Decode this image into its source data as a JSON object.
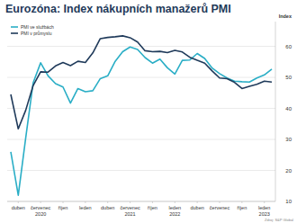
{
  "chart_data": {
    "type": "line",
    "title": "Eurozóna: Index nákupních manažerů PMI",
    "y_label": "Index",
    "source": "Zdroj: S&P Global",
    "categories": [
      null,
      "duben",
      null,
      null,
      "červenec 2020",
      null,
      null,
      "říjen",
      null,
      null,
      "leden",
      null,
      null,
      "duben",
      null,
      null,
      "červenec 2021",
      null,
      null,
      "říjen",
      null,
      null,
      "leden 2022",
      null,
      null,
      "duben",
      null,
      null,
      "červenec",
      null,
      null,
      "říjen",
      null,
      null,
      "leden 2023",
      null
    ],
    "series": [
      {
        "name": "PMI ve službách",
        "color": "#2aaec6",
        "values": [
          26,
          12,
          30.5,
          48.3,
          54.7,
          50.5,
          48,
          46.9,
          41.7,
          46.4,
          45.4,
          45.7,
          49.6,
          50.5,
          55.2,
          58.3,
          59.8,
          59,
          56.4,
          54.6,
          55.9,
          53.1,
          51.1,
          55.5,
          55.6,
          57.7,
          56.1,
          53,
          51.2,
          49.8,
          48.8,
          48.6,
          48.5,
          49.8,
          50.8,
          52.7
        ]
      },
      {
        "name": "PMI v průmyslu",
        "color": "#1f3a5a",
        "values": [
          44.5,
          33.4,
          39.4,
          47.4,
          51.8,
          51.7,
          53.7,
          54.8,
          53.8,
          55.2,
          54.8,
          57.9,
          62.5,
          62.9,
          63.1,
          63.4,
          62.8,
          61.4,
          58.6,
          58.3,
          58.4,
          58,
          58.7,
          58.2,
          56.5,
          55.5,
          54.6,
          52.1,
          49.8,
          49.6,
          48.4,
          46.4,
          47.1,
          47.8,
          48.8,
          48.5
        ]
      }
    ],
    "ylim": [
      10,
      68
    ],
    "yticks": [
      10,
      20,
      30,
      40,
      50,
      60
    ],
    "grid": true,
    "legend": "top-left"
  }
}
